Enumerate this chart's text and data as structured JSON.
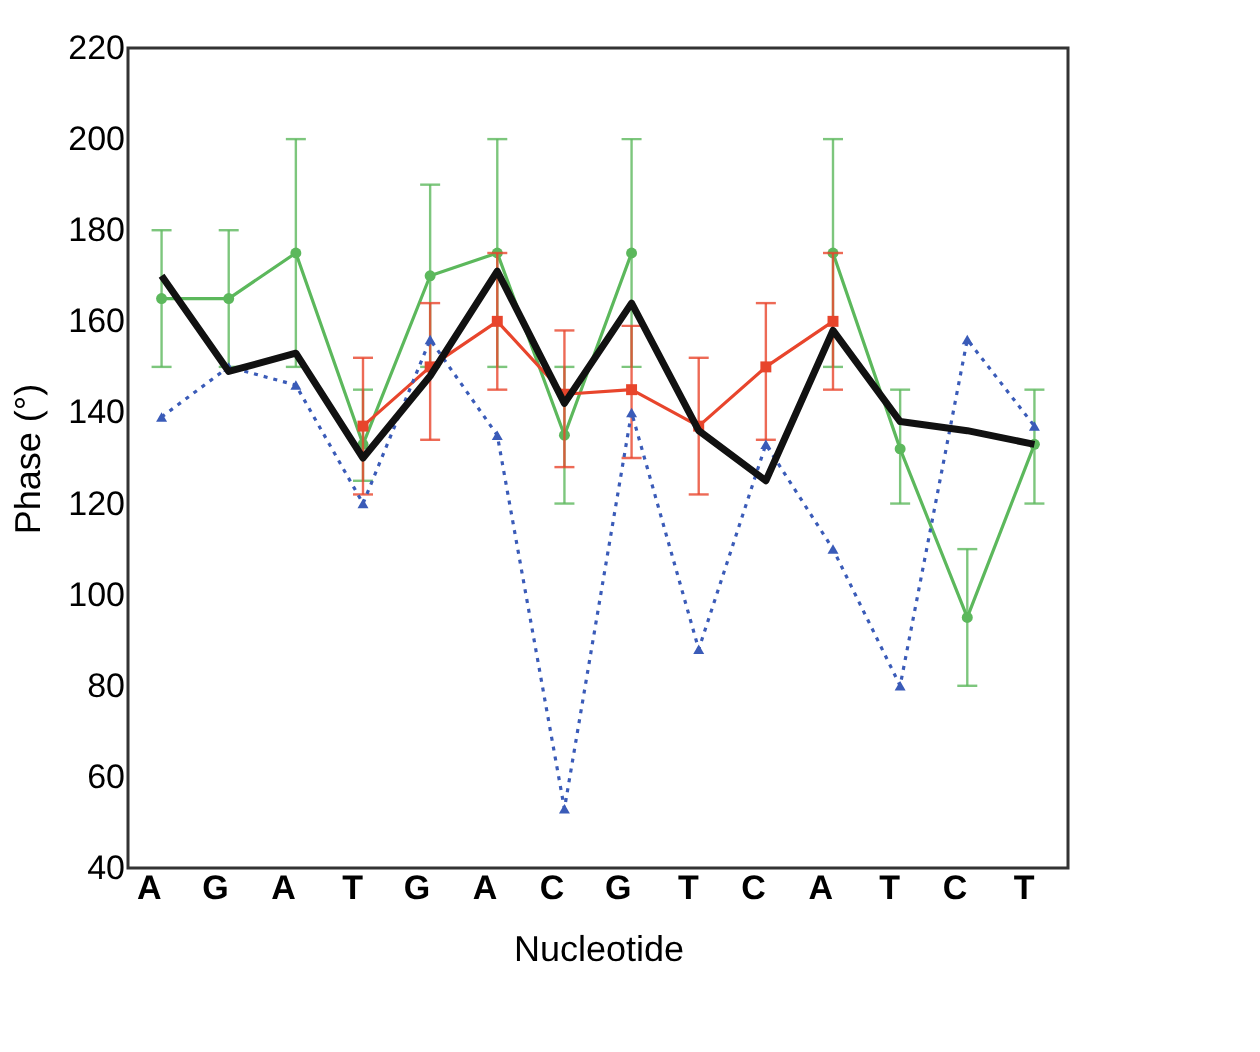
{
  "chart_data": {
    "type": "line",
    "xlabel": "Nucleotide",
    "ylabel": "Phase (°)",
    "categories": [
      "A",
      "G",
      "A",
      "T",
      "G",
      "A",
      "C",
      "G",
      "T",
      "C",
      "A",
      "T",
      "C",
      "T"
    ],
    "ylim": [
      40,
      220
    ],
    "yticks": [
      40,
      60,
      80,
      100,
      120,
      140,
      160,
      180,
      200,
      220
    ],
    "grid": false,
    "series": [
      {
        "color": "#5cb85c",
        "marker": "circle",
        "line_style": "solid",
        "values": [
          165,
          165,
          175,
          133,
          170,
          175,
          135,
          175,
          null,
          null,
          175,
          132,
          95,
          133
        ],
        "errors": [
          [
            150,
            180
          ],
          [
            150,
            180
          ],
          [
            150,
            200
          ],
          [
            125,
            145
          ],
          [
            150,
            190
          ],
          [
            150,
            200
          ],
          [
            120,
            150
          ],
          [
            150,
            200
          ],
          null,
          null,
          [
            150,
            200
          ],
          [
            120,
            145
          ],
          [
            80,
            110
          ],
          [
            120,
            145
          ]
        ]
      },
      {
        "color": "#e8452c",
        "marker": "square",
        "line_style": "solid",
        "values": [
          null,
          null,
          null,
          137,
          150,
          160,
          144,
          145,
          137,
          150,
          160,
          null,
          null,
          null
        ],
        "errors": [
          null,
          null,
          null,
          [
            122,
            152
          ],
          [
            134,
            164
          ],
          [
            145,
            175
          ],
          [
            128,
            158
          ],
          [
            130,
            159
          ],
          [
            122,
            152
          ],
          [
            134,
            164
          ],
          [
            145,
            175
          ],
          null,
          null,
          null
        ]
      },
      {
        "color": "#3a5bb8",
        "marker": "triangle",
        "line_style": "dotted",
        "values": [
          139,
          150,
          146,
          120,
          156,
          135,
          53,
          140,
          88,
          133,
          110,
          80,
          156,
          137
        ]
      },
      {
        "color": "#111111",
        "marker": "none",
        "line_style": "solid",
        "values": [
          170,
          149,
          153,
          130,
          148,
          171,
          142,
          164,
          136,
          125,
          158,
          138,
          136,
          133
        ]
      }
    ]
  }
}
